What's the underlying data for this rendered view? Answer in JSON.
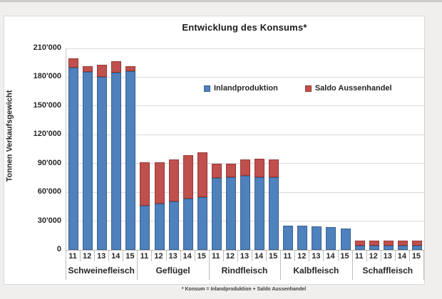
{
  "page": {
    "background": "#f1eeee",
    "panel_background": "#ffffff"
  },
  "chart_data": {
    "type": "bar",
    "stacked": true,
    "title": "Entwicklung des Konsums*",
    "ylabel": "Tonnen Verkaufsgewicht",
    "footnote": "* Konsum = Inlandproduktion + Saldo Aussenhandel",
    "grid": true,
    "legend_position": "inside-top-center",
    "ylim": [
      0,
      210000
    ],
    "y_ticks": [
      {
        "value": 210000,
        "label": "210'000"
      },
      {
        "value": 180000,
        "label": "180'000"
      },
      {
        "value": 150000,
        "label": "150'000"
      },
      {
        "value": 120000,
        "label": "120'000"
      },
      {
        "value": 90000,
        "label": "90'000"
      },
      {
        "value": 60000,
        "label": "60'000"
      },
      {
        "value": 30000,
        "label": "30'000"
      },
      {
        "value": 0,
        "label": "0"
      }
    ],
    "categories": [
      "Schweinefleisch",
      "Geflügel",
      "Rindfleisch",
      "Kalbfleisch",
      "Schaffleisch"
    ],
    "years": [
      "11",
      "12",
      "13",
      "14",
      "15"
    ],
    "series": [
      {
        "name": "Inlandproduktion",
        "color": "#4f81bd",
        "border_color": "#38618f",
        "values": [
          [
            190000,
            185500,
            180000,
            184500,
            186000
          ],
          [
            46000,
            48000,
            50500,
            53500,
            55000
          ],
          [
            75000,
            75500,
            77500,
            75500,
            76000
          ],
          [
            25500,
            25000,
            24500,
            24000,
            22500
          ],
          [
            4200,
            4100,
            4100,
            4200,
            4200
          ]
        ]
      },
      {
        "name": "Saldo Aussenhandel",
        "color": "#c0504d",
        "border_color": "#963634",
        "values": [
          [
            9500,
            6000,
            13000,
            12000,
            5500
          ],
          [
            45500,
            43500,
            43500,
            45000,
            46500
          ],
          [
            15000,
            14500,
            16500,
            19500,
            18000
          ],
          [
            0,
            0,
            0,
            0,
            0
          ],
          [
            5400,
            5300,
            5500,
            5600,
            5700
          ]
        ]
      }
    ]
  }
}
